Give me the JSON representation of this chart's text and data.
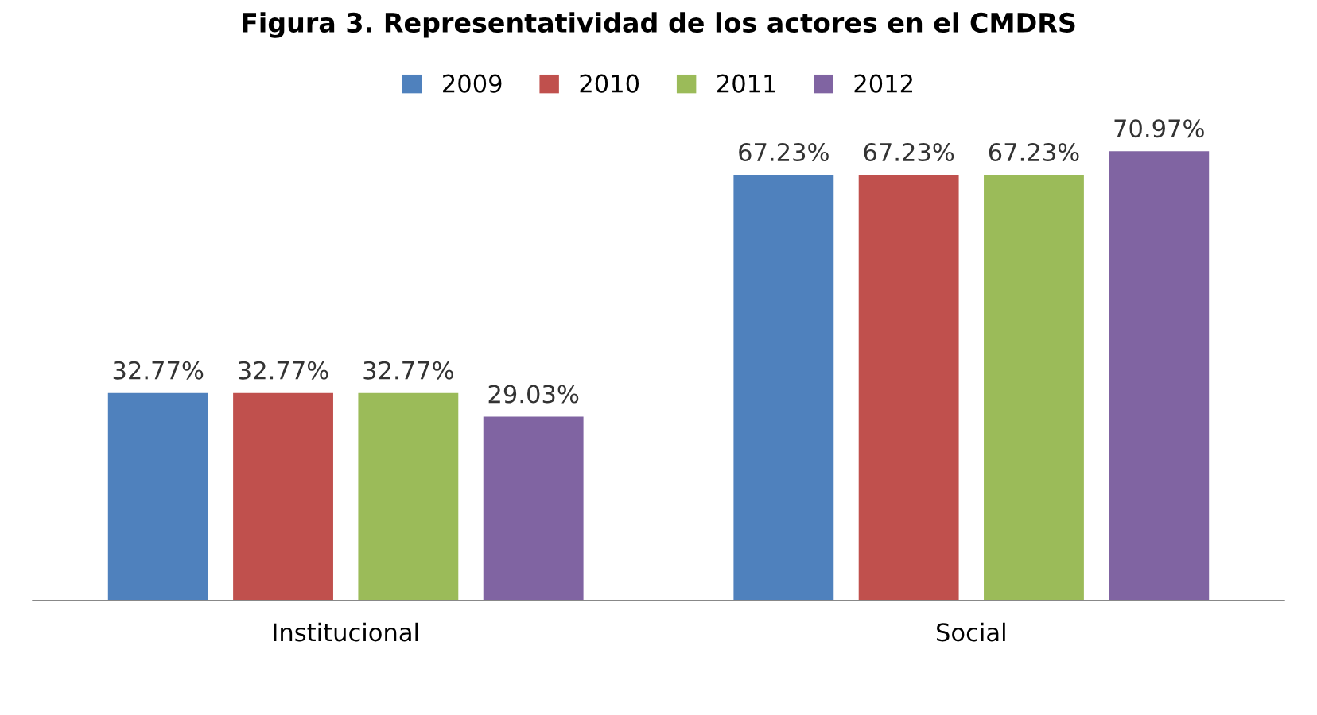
{
  "chart_data": {
    "type": "bar",
    "title": "Figura 3. Representatividad de los actores en el CMDRS",
    "categories": [
      "Institucional",
      "Social"
    ],
    "series": [
      {
        "name": "2009",
        "color": "#4f81bd",
        "values": [
          32.77,
          67.23
        ],
        "value_labels": [
          "32.77%",
          "67.23%"
        ]
      },
      {
        "name": "2010",
        "color": "#c0504d",
        "values": [
          32.77,
          67.23
        ],
        "value_labels": [
          "32.77%",
          "67.23%"
        ]
      },
      {
        "name": "2011",
        "color": "#9bbb59",
        "values": [
          32.77,
          67.23
        ],
        "value_labels": [
          "32.77%",
          "67.23%"
        ]
      },
      {
        "name": "2012",
        "color": "#8064a2",
        "values": [
          29.03,
          70.97
        ],
        "value_labels": [
          "29.03%",
          "70.97%"
        ]
      }
    ],
    "legend": "top",
    "grid": false
  }
}
